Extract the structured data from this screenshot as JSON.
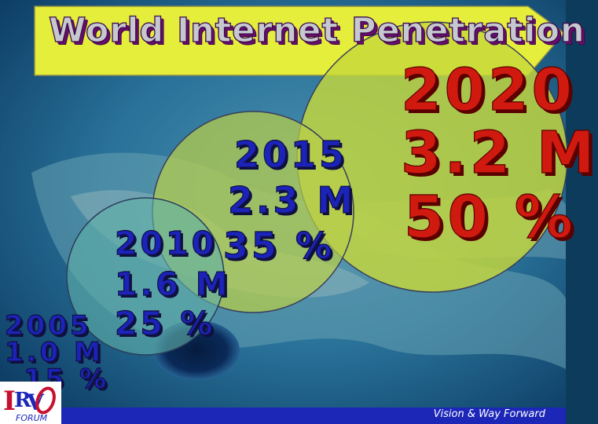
{
  "title": "World Internet Penetration",
  "stats": [
    {
      "year": "2005",
      "users": "1.0 M",
      "pct": "15 %"
    },
    {
      "year": "2010",
      "users": "1.6 M",
      "pct": "25  %"
    },
    {
      "year": "2015",
      "users": "2.3 M",
      "pct": "35  %"
    },
    {
      "year": "2020",
      "users": "3.2 M",
      "pct": "50 %"
    }
  ],
  "footer": {
    "tagline": "Vision & Way Forward"
  },
  "logo": {
    "letters": "IRVO",
    "caption": "FORUM"
  },
  "colors": {
    "banner": "#e6ee3c",
    "navy_text": "#1b23b8",
    "red_text": "#d01a0f",
    "footer_bar": "#1c27b8"
  }
}
